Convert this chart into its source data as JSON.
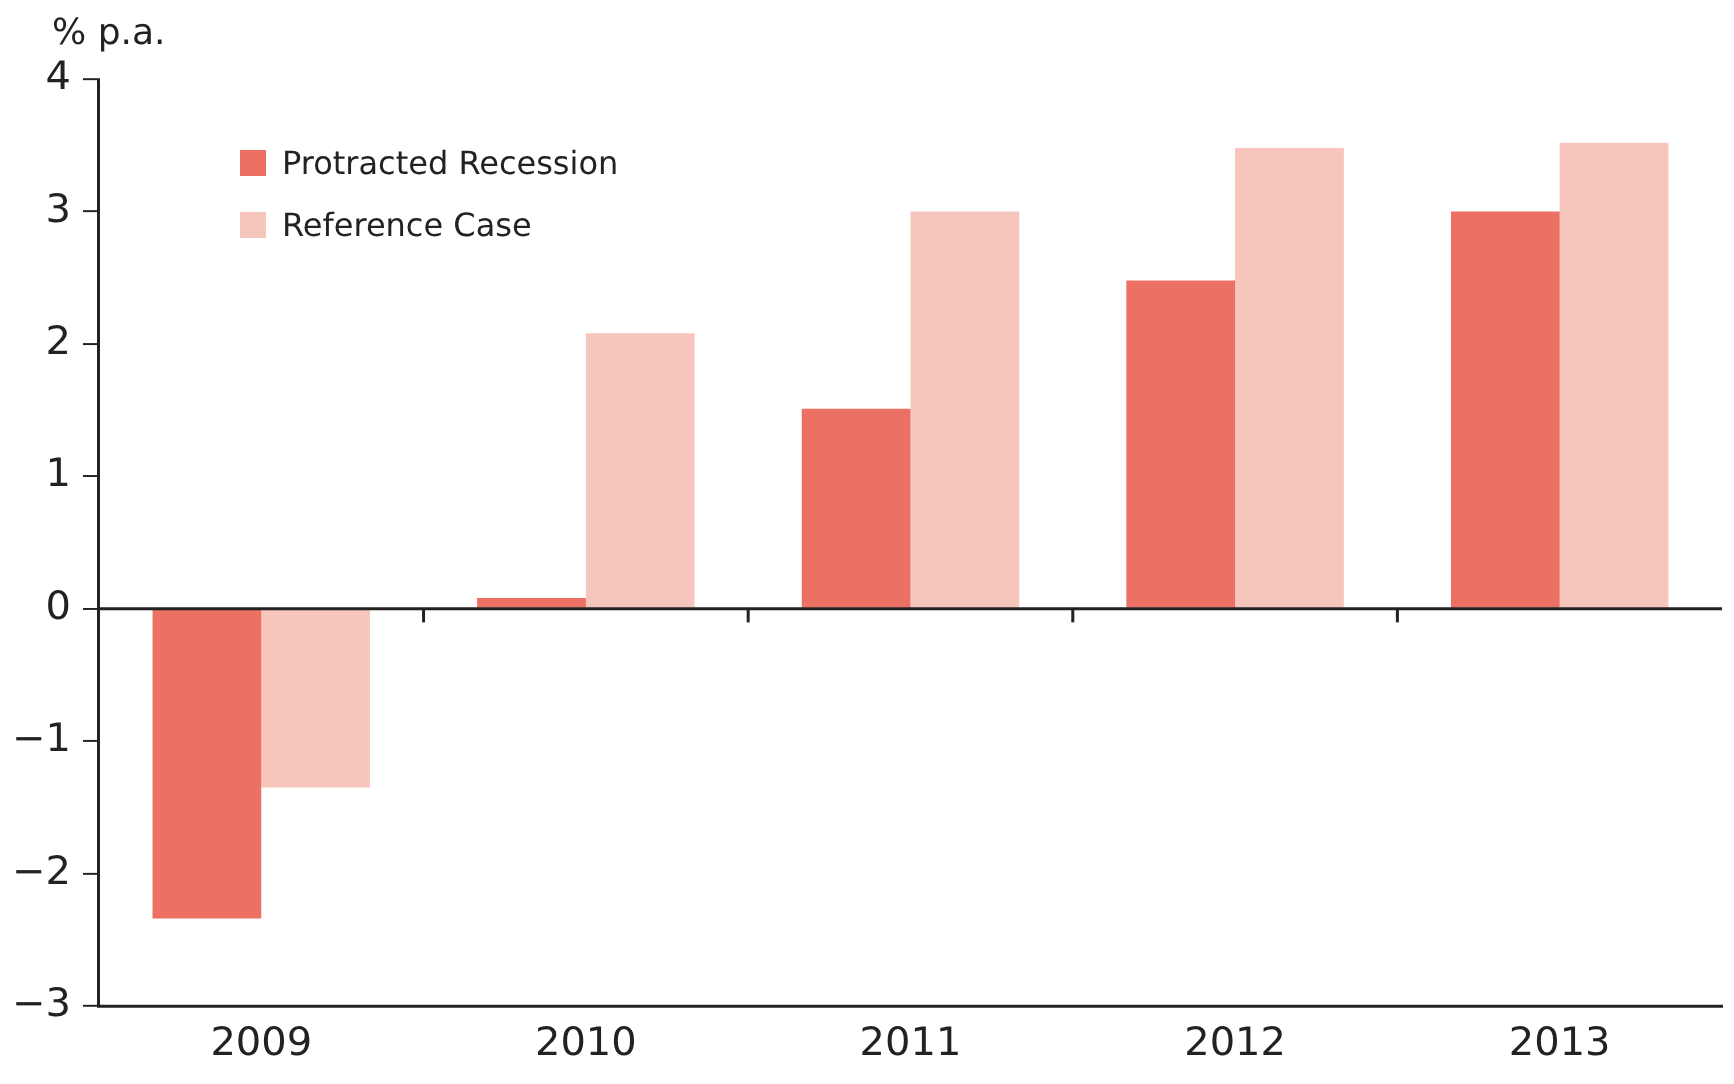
{
  "chart_data": {
    "type": "bar",
    "ylabel": "% p.a.",
    "categories": [
      "2009",
      "2010",
      "2011",
      "2012",
      "2013"
    ],
    "series": [
      {
        "name": "Protracted Recession",
        "color": "#ec7063",
        "values": [
          -2.34,
          0.08,
          1.51,
          2.48,
          3.0
        ]
      },
      {
        "name": "Reference Case",
        "color": "#f6c5bc",
        "values": [
          -1.35,
          2.08,
          3.0,
          3.48,
          3.52
        ]
      }
    ],
    "ylim": [
      -3,
      4
    ],
    "yticks": [
      {
        "value": -3,
        "label": "−3"
      },
      {
        "value": -2,
        "label": "−2"
      },
      {
        "value": -1,
        "label": "−1"
      },
      0,
      1,
      2,
      3,
      4
    ],
    "ref_lines": [
      {
        "axis": "y",
        "value": 0,
        "color": "#222222"
      }
    ],
    "grid": false,
    "legend": "top left"
  }
}
